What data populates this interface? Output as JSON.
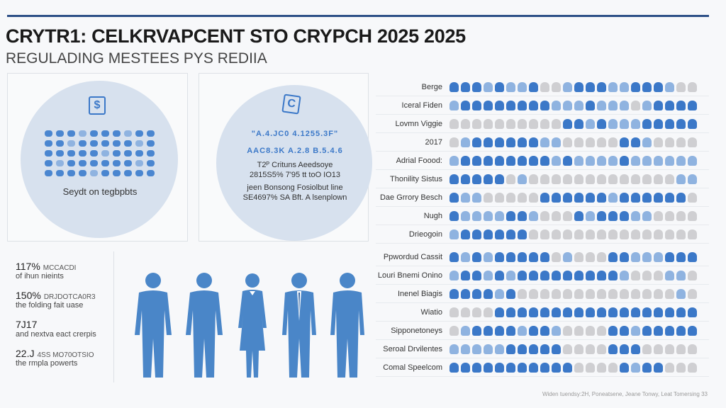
{
  "header": {
    "title": "CRYTR1: CELKRVAPCENT STO CRYPCH 2025 2025",
    "subtitle": "REGULADING MESTEES PYS REDIIA"
  },
  "left_panel": {
    "icon": "dollar-icon",
    "icon_glyph": "$",
    "caption": "Seydt on tegbpbts"
  },
  "middle_panel": {
    "icon": "copyright-icon",
    "icon_glyph": "C",
    "blue_line_1": "\"A.4.JC0 4.1255.3F\"",
    "blue_line_2": "AAC8.3K A.2.8 B.5.4.6",
    "lines": [
      "T2ᴾ Crituns Aeedsoye",
      "2815S5% 7'95 tt toO IO13",
      "jeen Bonsong Fosiolbut line",
      "SE4697% SA Bft. A lsenplown"
    ]
  },
  "stats": [
    {
      "value": "117%",
      "tag": "MCCACDI",
      "desc": "of ihun nieints"
    },
    {
      "value": "150%",
      "tag": "DRJDOTCA0R3",
      "desc": "the folding fait uase"
    },
    {
      "value": "7J17",
      "tag": "",
      "desc": "and nextva eact crerpis"
    },
    {
      "value": "22.J",
      "tag": "4SS MO70OTSIO",
      "desc": "the rmpla powerts"
    }
  ],
  "colors": {
    "dark": "#3b78c8",
    "light": "#8fb3e0",
    "gray": "#cfcfd2",
    "rule": "#2d4f86"
  },
  "rows_top": [
    {
      "label": "Berge",
      "pattern": "dddldlldggldddllddd lgg"
    },
    {
      "label": "Iceral Fiden",
      "pattern": "lddddddddllldlllgldddddd"
    },
    {
      "label": "Lovmn Viggie",
      "pattern": "ggggggggggddldllldddddl"
    },
    {
      "label": "2017",
      "pattern": "glddddddllgggggddlgggg"
    },
    {
      "label": "Adrial Foood:",
      "pattern": "lddddddddldlllldllllll"
    },
    {
      "label": "Thonility Sistus",
      "pattern": "dddddglgggggggggggggll"
    },
    {
      "label": "Dae Grrory Besch",
      "pattern": "dllgggggddddddlddddddg"
    },
    {
      "label": "Nugh",
      "pattern": "dlllldd lgggdldddllgggg"
    },
    {
      "label": "Drieogoin",
      "pattern": "lddddddggggggggggggggg"
    }
  ],
  "rows_bottom": [
    {
      "label": "Ppwordud Cassit",
      "pattern": "dldldddddglgggddllldddd"
    },
    {
      "label": "Louri Bnemi Onino",
      "pattern": "lddldlddddddddd lgggllg"
    },
    {
      "label": "Inenel Biagis",
      "pattern": "ddddldggggggggggggggl g"
    },
    {
      "label": "Wiatio",
      "pattern": "ggggdddddddddddddddddd"
    },
    {
      "label": "Sipponetoneys",
      "pattern": "glddddlddlggggddldddddd"
    },
    {
      "label": "Seroal Drvilentes",
      "pattern": "llllldddddggggdddggggg"
    },
    {
      "label": "Comal Speelcom",
      "pattern": "dddddddddddggggdlddggg"
    }
  ],
  "footer": "Widen tuendsy:2H, Poneatsene, Jeane Tonwy, Leat Tomersing 33"
}
